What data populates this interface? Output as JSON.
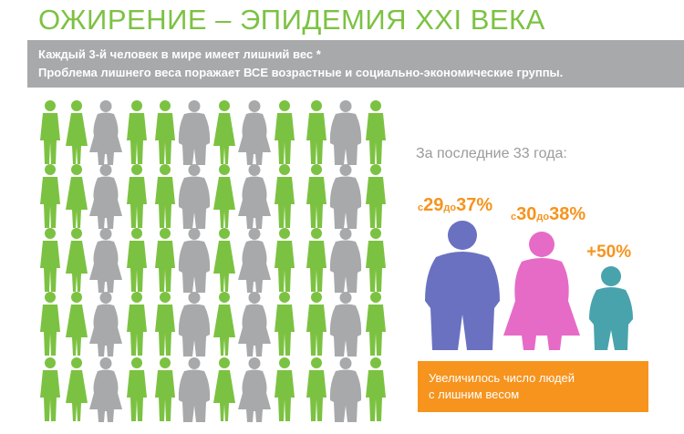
{
  "title": "ОЖИРЕНИЕ – ЭПИДЕМИЯ XXI ВЕКА",
  "banner": {
    "line1": "Каждый 3-й человек в мире имеет лишний вес *",
    "line2": "Проблема лишнего веса поражает ВСЕ возрастные и социально-экономические группы."
  },
  "since_label": "За последние 33 года:",
  "stats": {
    "men": {
      "from_prefix": "с",
      "from": "29",
      "to_prefix": "до",
      "to": "37%"
    },
    "women": {
      "from_prefix": "с",
      "from": "30",
      "to_prefix": "до",
      "to": "38%"
    },
    "children": {
      "value": "+50%"
    }
  },
  "conclusion": "Увеличилось число людей\nс лишним весом",
  "colors": {
    "green": "#7cc242",
    "grey": "#a8a9ab",
    "orange": "#f6941e",
    "blue": "#6a71c1",
    "pink": "#e66bc7",
    "teal": "#49a3ad",
    "title": "#7cc242"
  },
  "grid": {
    "rows": 5,
    "columns": 12,
    "pattern": [
      "man",
      "woman",
      "fat-woman",
      "man",
      "man",
      "fat-man",
      "woman",
      "fat-woman",
      "man",
      "man",
      "fat-man",
      "man"
    ]
  }
}
